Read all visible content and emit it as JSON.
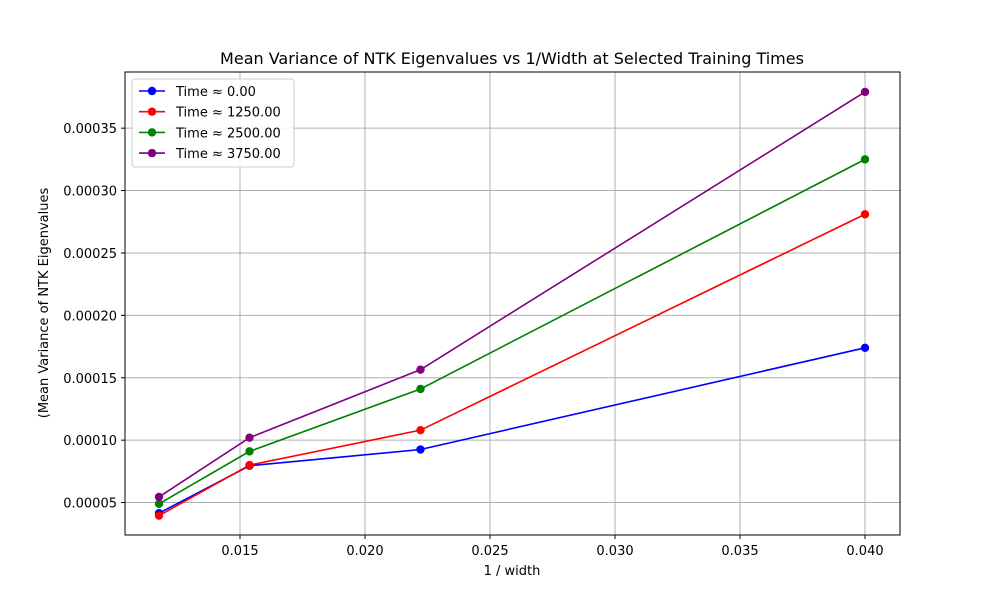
{
  "chart_data": {
    "type": "line",
    "title": "Mean Variance of NTK Eigenvalues vs 1/Width at Selected Training Times",
    "xlabel": "1 / width",
    "ylabel": "(Mean Variance of NTK Eigenvalues",
    "xlim": [
      0.0104,
      0.0414
    ],
    "ylim": [
      2.4e-05,
      0.000395
    ],
    "xticks": [
      0.015,
      0.02,
      0.025,
      0.03,
      0.035,
      0.04
    ],
    "xtick_labels": [
      "0.015",
      "0.020",
      "0.025",
      "0.030",
      "0.035",
      "0.040"
    ],
    "yticks": [
      5e-05,
      0.0001,
      0.00015,
      0.0002,
      0.00025,
      0.0003,
      0.00035
    ],
    "ytick_labels": [
      "0.00005",
      "0.00010",
      "0.00015",
      "0.00020",
      "0.00025",
      "0.00030",
      "0.00035"
    ],
    "grid": true,
    "legend_position": "top-left",
    "x": [
      0.01176,
      0.01538,
      0.02222,
      0.04
    ],
    "series": [
      {
        "name": "Time ≈ 0.00",
        "color": "#0000ff",
        "values": [
          4.15e-05,
          7.95e-05,
          9.25e-05,
          0.000174
        ]
      },
      {
        "name": "Time ≈ 1250.00",
        "color": "#ff0000",
        "values": [
          3.95e-05,
          8e-05,
          0.000108,
          0.000281
        ]
      },
      {
        "name": "Time ≈ 2500.00",
        "color": "#008000",
        "values": [
          4.9e-05,
          9.1e-05,
          0.000141,
          0.000325
        ]
      },
      {
        "name": "Time ≈ 3750.00",
        "color": "#800080",
        "values": [
          5.45e-05,
          0.000102,
          0.0001565,
          0.000379
        ]
      }
    ]
  }
}
